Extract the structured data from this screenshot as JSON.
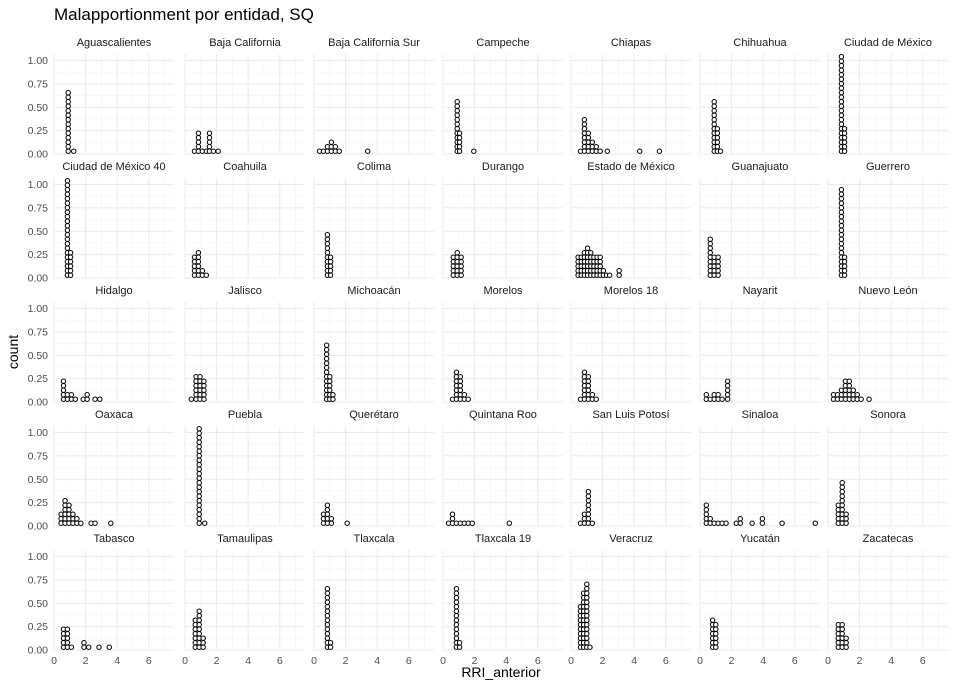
{
  "chart_data": {
    "type": "dotplot",
    "title": "Malapportionment por entidad, SQ",
    "xlabel": "RRI_anterior",
    "ylabel": "count",
    "xlim": [
      0,
      7.6
    ],
    "ylim": [
      0,
      1.07
    ],
    "x_ticks": [
      "0",
      "2",
      "4",
      "6"
    ],
    "y_ticks": [
      "0.00",
      "0.25",
      "0.50",
      "0.75",
      "1.00"
    ],
    "facets": [
      {
        "name": "Aguascalientes",
        "points": [
          [
            0.9,
            0.65
          ],
          [
            1.25,
            0.05
          ]
        ]
      },
      {
        "name": "Baja California",
        "points": [
          [
            0.6,
            0.05
          ],
          [
            0.85,
            0.22
          ],
          [
            1.1,
            0.05
          ],
          [
            1.35,
            0.05
          ],
          [
            1.55,
            0.2
          ],
          [
            1.8,
            0.05
          ],
          [
            2.1,
            0.05
          ]
        ]
      },
      {
        "name": "Baja California Sur",
        "points": [
          [
            0.35,
            0.05
          ],
          [
            0.6,
            0.05
          ],
          [
            0.85,
            0.1
          ],
          [
            1.1,
            0.15
          ],
          [
            1.35,
            0.1
          ],
          [
            1.6,
            0.05
          ],
          [
            3.4,
            0.05
          ]
        ]
      },
      {
        "name": "Campeche",
        "points": [
          [
            0.9,
            0.56
          ],
          [
            1.05,
            0.2
          ],
          [
            1.95,
            0.05
          ]
        ]
      },
      {
        "name": "Chiapas",
        "points": [
          [
            0.6,
            0.05
          ],
          [
            0.85,
            0.35
          ],
          [
            1.1,
            0.2
          ],
          [
            1.35,
            0.15
          ],
          [
            1.6,
            0.1
          ],
          [
            1.85,
            0.05
          ],
          [
            2.3,
            0.05
          ],
          [
            4.35,
            0.05
          ],
          [
            5.6,
            0.05
          ]
        ]
      },
      {
        "name": "Chihuahua",
        "points": [
          [
            0.9,
            0.56
          ],
          [
            1.1,
            0.28
          ],
          [
            1.3,
            0.05
          ]
        ]
      },
      {
        "name": "Ciudad de México",
        "points": [
          [
            0.85,
            1.03
          ],
          [
            1.05,
            0.28
          ]
        ]
      },
      {
        "name": "Ciudad de México 40",
        "points": [
          [
            0.85,
            1.03
          ],
          [
            1.05,
            0.28
          ]
        ]
      },
      {
        "name": "Coahuila",
        "points": [
          [
            0.6,
            0.2
          ],
          [
            0.85,
            0.28
          ],
          [
            1.1,
            0.1
          ],
          [
            1.35,
            0.05
          ]
        ]
      },
      {
        "name": "Colima",
        "points": [
          [
            0.85,
            0.48
          ],
          [
            1.05,
            0.2
          ]
        ]
      },
      {
        "name": "Durango",
        "points": [
          [
            0.65,
            0.2
          ],
          [
            0.9,
            0.28
          ],
          [
            1.15,
            0.2
          ]
        ]
      },
      {
        "name": "Estado de México",
        "points": [
          [
            0.45,
            0.2
          ],
          [
            0.65,
            0.2
          ],
          [
            0.85,
            0.28
          ],
          [
            1.05,
            0.32
          ],
          [
            1.25,
            0.28
          ],
          [
            1.45,
            0.2
          ],
          [
            1.65,
            0.2
          ],
          [
            1.85,
            0.2
          ],
          [
            2.05,
            0.1
          ],
          [
            2.25,
            0.05
          ],
          [
            2.45,
            0.05
          ],
          [
            3.05,
            0.1
          ]
        ]
      },
      {
        "name": "Guanajuato",
        "points": [
          [
            0.65,
            0.4
          ],
          [
            0.9,
            0.24
          ],
          [
            1.15,
            0.24
          ]
        ]
      },
      {
        "name": "Guerrero",
        "points": [
          [
            0.85,
            0.95
          ],
          [
            1.05,
            0.2
          ]
        ]
      },
      {
        "name": "Hidalgo",
        "points": [
          [
            0.6,
            0.24
          ],
          [
            0.85,
            0.1
          ],
          [
            1.1,
            0.1
          ],
          [
            1.35,
            0.05
          ],
          [
            1.85,
            0.05
          ],
          [
            2.1,
            0.07
          ],
          [
            2.6,
            0.05
          ],
          [
            2.9,
            0.05
          ]
        ]
      },
      {
        "name": "Jalisco",
        "points": [
          [
            0.4,
            0.05
          ],
          [
            0.7,
            0.28
          ],
          [
            0.95,
            0.28
          ],
          [
            1.2,
            0.24
          ]
        ]
      },
      {
        "name": "Michoacán",
        "points": [
          [
            0.8,
            0.6
          ],
          [
            1.0,
            0.28
          ],
          [
            1.2,
            0.1
          ]
        ]
      },
      {
        "name": "Morelos",
        "points": [
          [
            0.6,
            0.05
          ],
          [
            0.85,
            0.32
          ],
          [
            1.1,
            0.28
          ],
          [
            1.35,
            0.1
          ],
          [
            1.6,
            0.05
          ]
        ]
      },
      {
        "name": "Morelos 18",
        "points": [
          [
            0.6,
            0.05
          ],
          [
            0.85,
            0.32
          ],
          [
            1.1,
            0.28
          ],
          [
            1.35,
            0.1
          ],
          [
            1.6,
            0.05
          ]
        ]
      },
      {
        "name": "Nayarit",
        "points": [
          [
            0.4,
            0.1
          ],
          [
            0.65,
            0.05
          ],
          [
            0.9,
            0.1
          ],
          [
            1.15,
            0.1
          ],
          [
            1.4,
            0.05
          ],
          [
            1.75,
            0.2
          ]
        ]
      },
      {
        "name": "Nuevo León",
        "points": [
          [
            0.35,
            0.1
          ],
          [
            0.6,
            0.1
          ],
          [
            0.85,
            0.15
          ],
          [
            1.1,
            0.2
          ],
          [
            1.35,
            0.2
          ],
          [
            1.6,
            0.15
          ],
          [
            1.85,
            0.1
          ],
          [
            2.1,
            0.05
          ],
          [
            2.6,
            0.05
          ]
        ]
      },
      {
        "name": "Oaxaca",
        "points": [
          [
            0.45,
            0.15
          ],
          [
            0.7,
            0.28
          ],
          [
            0.95,
            0.2
          ],
          [
            1.2,
            0.15
          ],
          [
            1.45,
            0.1
          ],
          [
            1.7,
            0.05
          ],
          [
            2.35,
            0.05
          ],
          [
            2.6,
            0.05
          ],
          [
            3.6,
            0.05
          ]
        ]
      },
      {
        "name": "Puebla",
        "points": [
          [
            0.9,
            1.03
          ],
          [
            1.25,
            0.05
          ]
        ]
      },
      {
        "name": "Querétaro",
        "points": [
          [
            0.6,
            0.15
          ],
          [
            0.85,
            0.24
          ],
          [
            1.1,
            0.1
          ],
          [
            2.1,
            0.05
          ]
        ]
      },
      {
        "name": "Quintana Roo",
        "points": [
          [
            0.35,
            0.05
          ],
          [
            0.6,
            0.15
          ],
          [
            0.85,
            0.05
          ],
          [
            1.1,
            0.05
          ],
          [
            1.35,
            0.05
          ],
          [
            1.6,
            0.05
          ],
          [
            1.85,
            0.05
          ],
          [
            4.2,
            0.05
          ]
        ]
      },
      {
        "name": "San Luis Potosí",
        "points": [
          [
            0.6,
            0.05
          ],
          [
            0.85,
            0.15
          ],
          [
            1.1,
            0.36
          ],
          [
            1.35,
            0.05
          ]
        ]
      },
      {
        "name": "Sinaloa",
        "points": [
          [
            0.4,
            0.2
          ],
          [
            0.65,
            0.1
          ],
          [
            0.9,
            0.05
          ],
          [
            1.15,
            0.05
          ],
          [
            1.4,
            0.05
          ],
          [
            1.65,
            0.05
          ],
          [
            2.3,
            0.05
          ],
          [
            2.55,
            0.1
          ],
          [
            3.3,
            0.05
          ],
          [
            3.95,
            0.1
          ],
          [
            5.2,
            0.05
          ],
          [
            7.3,
            0.05
          ]
        ]
      },
      {
        "name": "Sonora",
        "points": [
          [
            0.65,
            0.24
          ],
          [
            0.9,
            0.45
          ],
          [
            1.15,
            0.15
          ]
        ]
      },
      {
        "name": "Tabasco",
        "points": [
          [
            0.6,
            0.24
          ],
          [
            0.85,
            0.2
          ],
          [
            1.1,
            0.05
          ],
          [
            1.9,
            0.1
          ],
          [
            2.2,
            0.05
          ],
          [
            2.85,
            0.05
          ],
          [
            3.5,
            0.05
          ]
        ]
      },
      {
        "name": "Tamaulipas",
        "points": [
          [
            0.65,
            0.32
          ],
          [
            0.9,
            0.4
          ],
          [
            1.15,
            0.15
          ]
        ]
      },
      {
        "name": "Tlaxcala",
        "points": [
          [
            0.85,
            0.65
          ],
          [
            1.05,
            0.1
          ]
        ]
      },
      {
        "name": "Tlaxcala 19",
        "points": [
          [
            0.85,
            0.65
          ],
          [
            1.05,
            0.1
          ]
        ]
      },
      {
        "name": "Veracruz",
        "points": [
          [
            0.6,
            0.48
          ],
          [
            0.8,
            0.6
          ],
          [
            1.0,
            0.7
          ],
          [
            1.2,
            0.05
          ]
        ]
      },
      {
        "name": "Yucatán",
        "points": [
          [
            0.8,
            0.32
          ],
          [
            1.0,
            0.28
          ]
        ]
      },
      {
        "name": "Zacatecas",
        "points": [
          [
            0.65,
            0.28
          ],
          [
            0.9,
            0.28
          ],
          [
            1.15,
            0.15
          ]
        ]
      }
    ]
  }
}
